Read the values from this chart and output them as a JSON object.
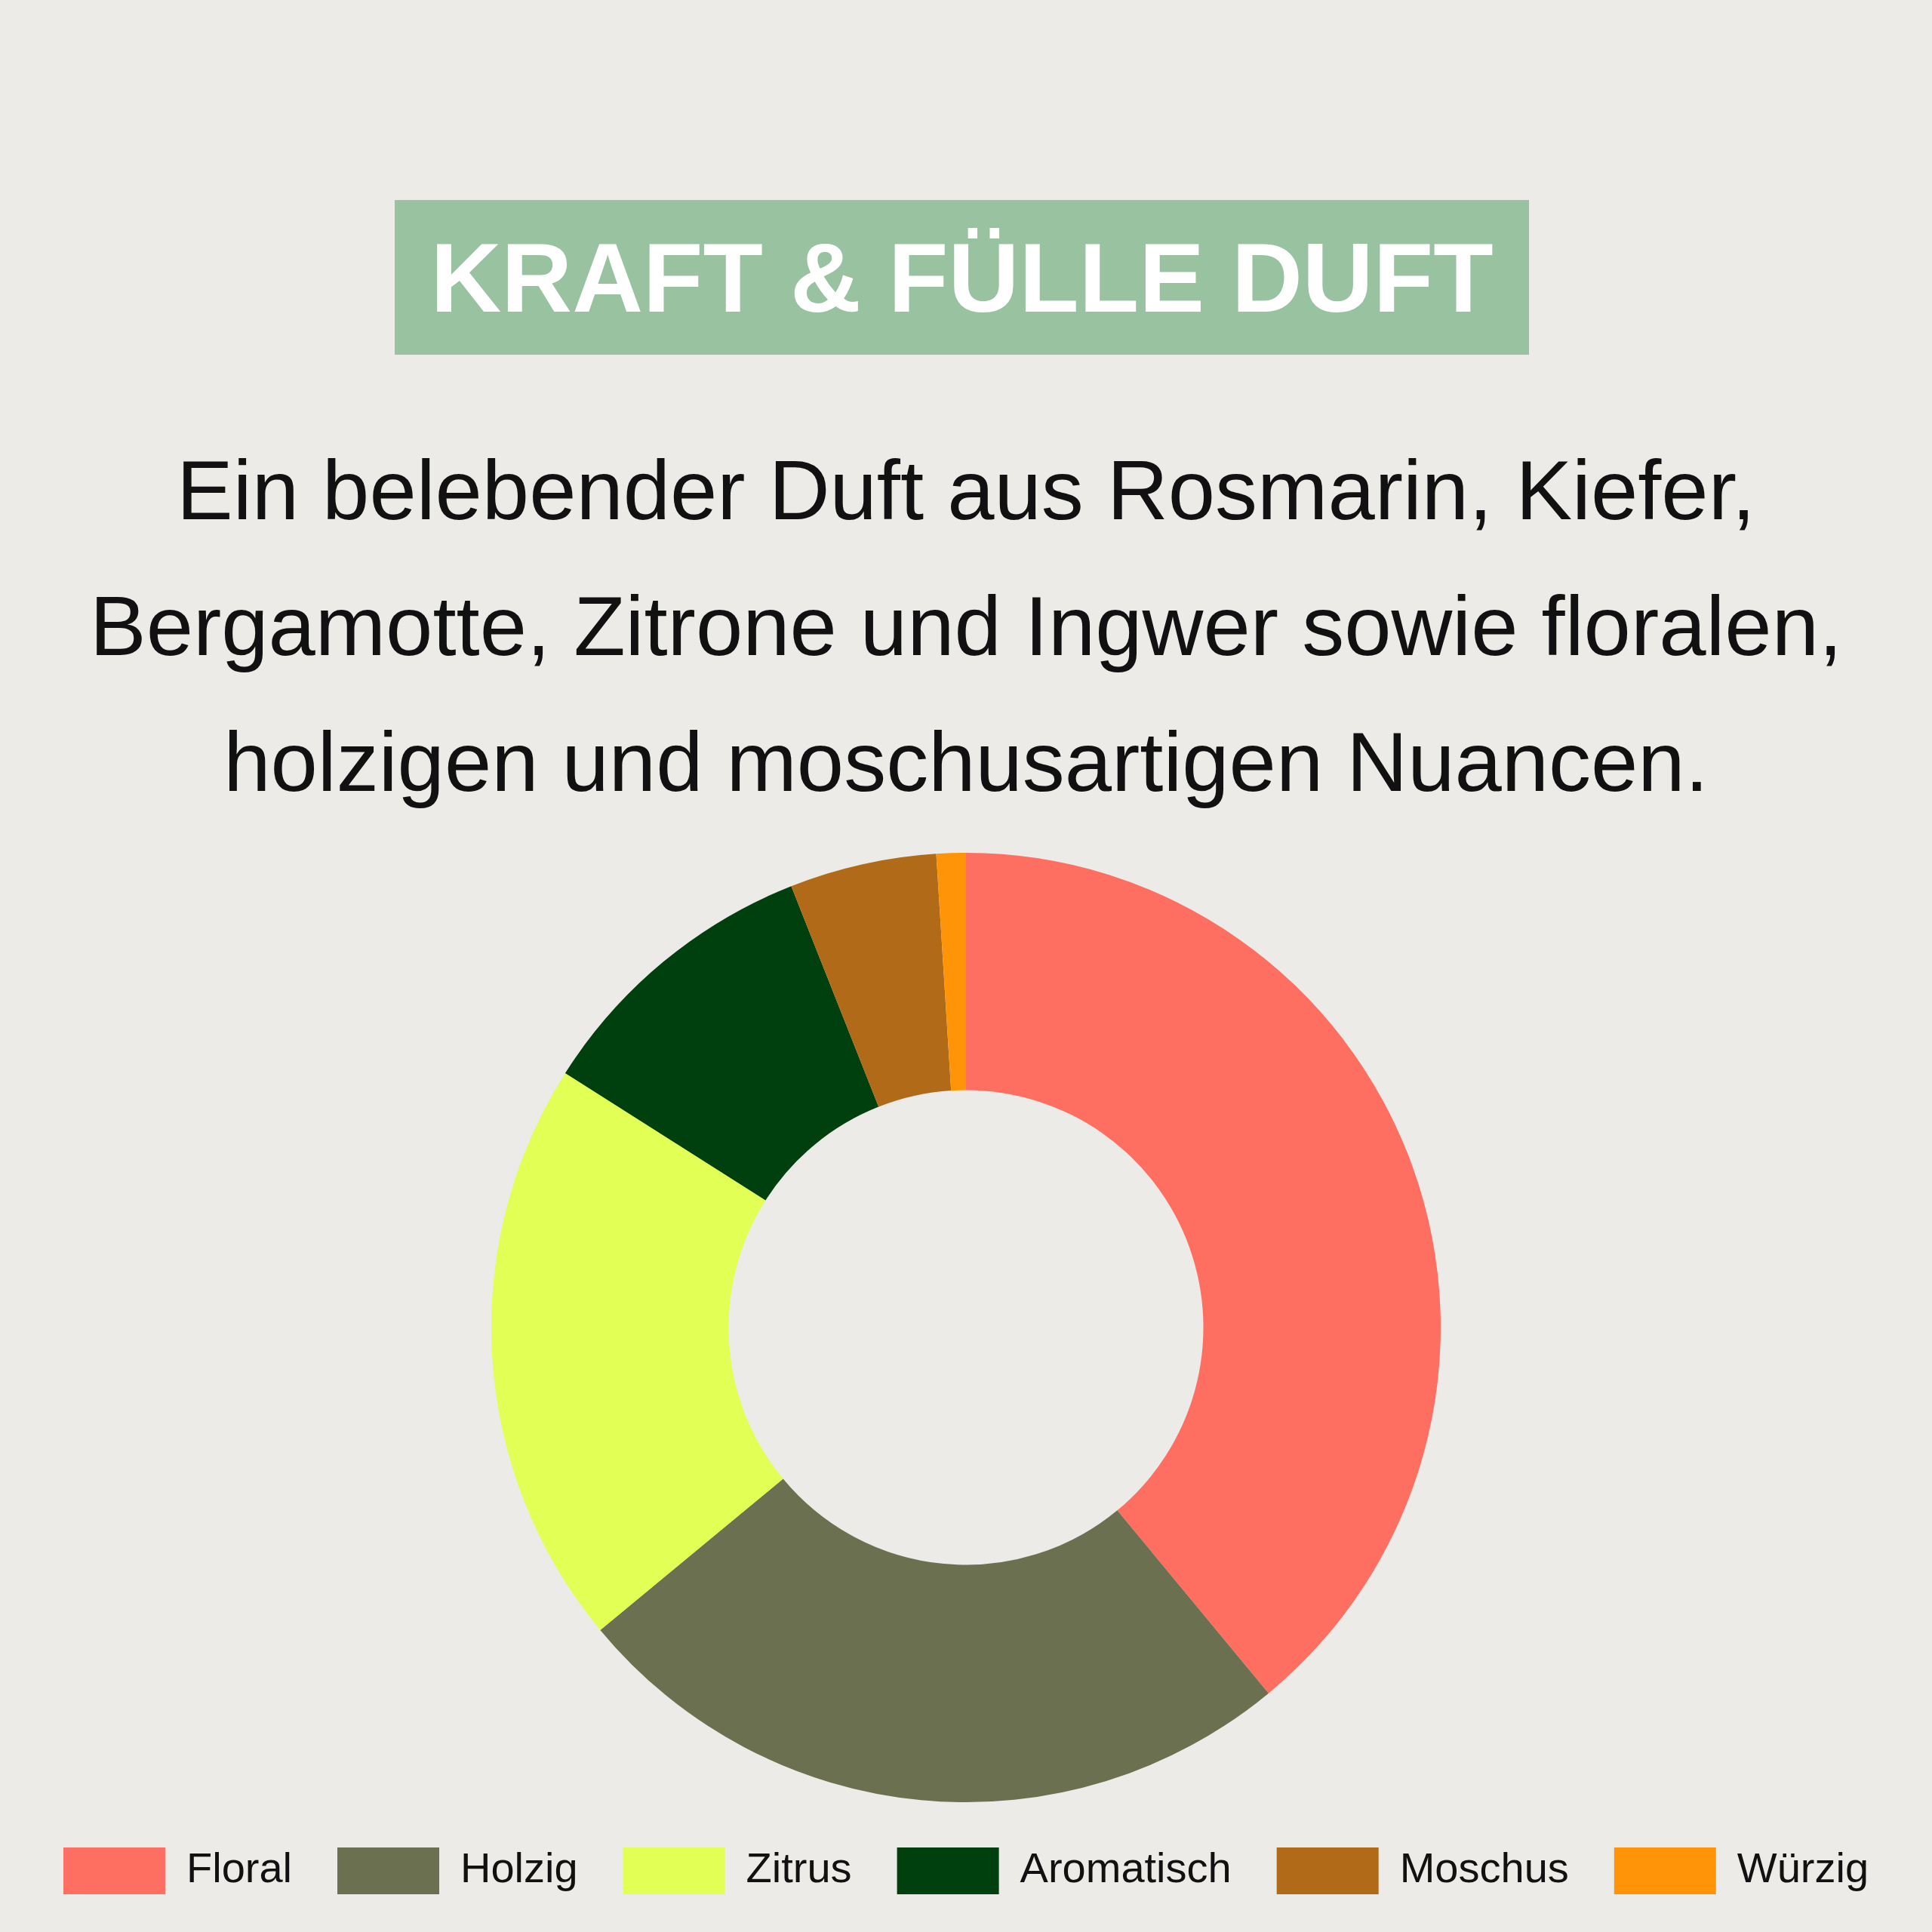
{
  "chart_data": {
    "type": "donut",
    "title": "KRAFT & FÜLLE DUFT",
    "subtitle": "Ein belebender Duft aus Rosmarin, Kiefer, Bergamotte, Zitrone und Ingwer sowie floralen, holzigen und moschusartigen Nuancen.",
    "categories": [
      "Floral",
      "Holzig",
      "Zitrus",
      "Aromatisch",
      "Moschus",
      "Würzig"
    ],
    "values": [
      39,
      25,
      20,
      10,
      5,
      1
    ],
    "colors": [
      "#ff6f61",
      "#6b7050",
      "#e2ff55",
      "#00400f",
      "#b06a18",
      "#ff9408"
    ],
    "legend": "bottom"
  }
}
